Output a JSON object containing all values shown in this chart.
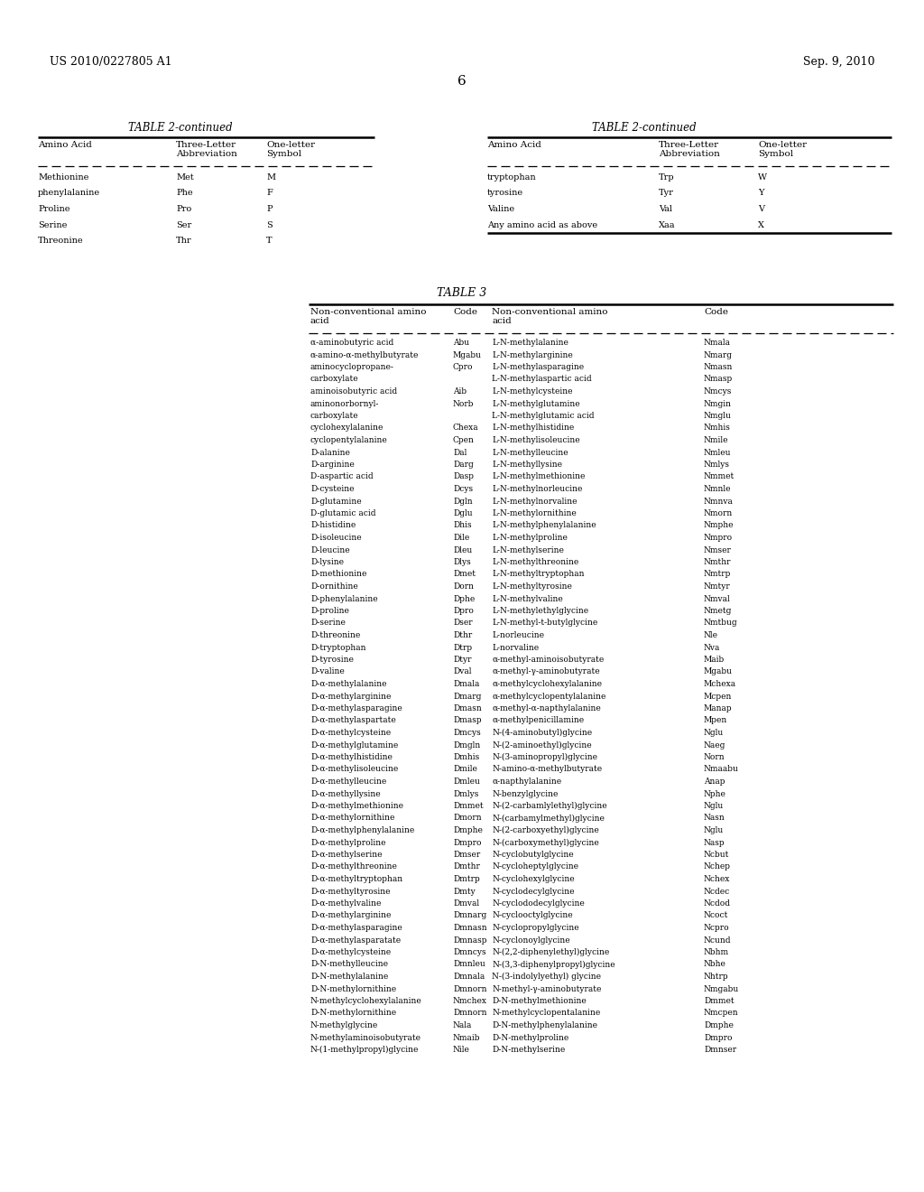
{
  "header_left": "US 2010/0227805 A1",
  "header_right": "Sep. 9, 2010",
  "page_number": "6",
  "table2_title": "TABLE 2-continued",
  "table2_left_rows": [
    [
      "Methionine",
      "Met",
      "M"
    ],
    [
      "phenylalanine",
      "Phe",
      "F"
    ],
    [
      "Proline",
      "Pro",
      "P"
    ],
    [
      "Serine",
      "Ser",
      "S"
    ],
    [
      "Threonine",
      "Thr",
      "T"
    ]
  ],
  "table2_right_rows": [
    [
      "tryptophan",
      "Trp",
      "W"
    ],
    [
      "tyrosine",
      "Tyr",
      "Y"
    ],
    [
      "Valine",
      "Val",
      "V"
    ],
    [
      "Any amino acid as above",
      "Xaa",
      "X"
    ]
  ],
  "table3_title": "TABLE 3",
  "table3_rows": [
    [
      "α-aminobutyric acid",
      "Abu",
      "L-N-methylalanine",
      "Nmala"
    ],
    [
      "α-amino-α-methylbutyrate",
      "Mgabu",
      "L-N-methylarginine",
      "Nmarg"
    ],
    [
      "aminocyclopropane-",
      "Cpro",
      "L-N-methylasparagine",
      "Nmasn"
    ],
    [
      "carboxylate",
      "",
      "L-N-methylaspartic acid",
      "Nmasp"
    ],
    [
      "aminoisobutyric acid",
      "Aib",
      "L-N-methylcysteine",
      "Nmcys"
    ],
    [
      "aminonorbornyl-",
      "Norb",
      "L-N-methylglutamine",
      "Nmgin"
    ],
    [
      "carboxylate",
      "",
      "L-N-methylglutamic acid",
      "Nmglu"
    ],
    [
      "cyclohexylalanine",
      "Chexa",
      "L-N-methylhistidine",
      "Nmhis"
    ],
    [
      "cyclopentylalanine",
      "Cpen",
      "L-N-methylisoleucine",
      "Nmile"
    ],
    [
      "D-alanine",
      "Dal",
      "L-N-methylleucine",
      "Nmleu"
    ],
    [
      "D-arginine",
      "Darg",
      "L-N-methyllysine",
      "Nmlys"
    ],
    [
      "D-aspartic acid",
      "Dasp",
      "L-N-methylmethionine",
      "Nmmet"
    ],
    [
      "D-cysteine",
      "Dcys",
      "L-N-methylnorleucine",
      "Nmnle"
    ],
    [
      "D-glutamine",
      "Dgln",
      "L-N-methylnorvaline",
      "Nmnva"
    ],
    [
      "D-glutamic acid",
      "Dglu",
      "L-N-methylornithine",
      "Nmorn"
    ],
    [
      "D-histidine",
      "Dhis",
      "L-N-methylphenylalanine",
      "Nmphe"
    ],
    [
      "D-isoleucine",
      "Dile",
      "L-N-methylproline",
      "Nmpro"
    ],
    [
      "D-leucine",
      "Dleu",
      "L-N-methylserine",
      "Nmser"
    ],
    [
      "D-lysine",
      "Dlys",
      "L-N-methylthreonine",
      "Nmthr"
    ],
    [
      "D-methionine",
      "Dmet",
      "L-N-methyltryptophan",
      "Nmtrp"
    ],
    [
      "D-ornithine",
      "Dorn",
      "L-N-methyltyrosine",
      "Nmtyr"
    ],
    [
      "D-phenylalanine",
      "Dphe",
      "L-N-methylvaline",
      "Nmval"
    ],
    [
      "D-proline",
      "Dpro",
      "L-N-methylethylglycine",
      "Nmetg"
    ],
    [
      "D-serine",
      "Dser",
      "L-N-methyl-t-butylglycine",
      "Nmtbug"
    ],
    [
      "D-threonine",
      "Dthr",
      "L-norleucine",
      "Nle"
    ],
    [
      "D-tryptophan",
      "Dtrp",
      "L-norvaline",
      "Nva"
    ],
    [
      "D-tyrosine",
      "Dtyr",
      "α-methyl-aminoisobutyrate",
      "Maib"
    ],
    [
      "D-valine",
      "Dval",
      "α-methyl-γ-aminobutyrate",
      "Mgabu"
    ],
    [
      "D-α-methylalanine",
      "Dmala",
      "α-methylcyclohexylalanine",
      "Mchexa"
    ],
    [
      "D-α-methylarginine",
      "Dmarg",
      "α-methylcyclopentylalanine",
      "Mcpen"
    ],
    [
      "D-α-methylasparagine",
      "Dmasn",
      "α-methyl-α-napthylalanine",
      "Manap"
    ],
    [
      "D-α-methylaspartate",
      "Dmasp",
      "α-methylpenicillamine",
      "Mpen"
    ],
    [
      "D-α-methylcysteine",
      "Dmcys",
      "N-(4-aminobutyl)glycine",
      "Nglu"
    ],
    [
      "D-α-methylglutamine",
      "Dmgln",
      "N-(2-aminoethyl)glycine",
      "Naeg"
    ],
    [
      "D-α-methylhistidine",
      "Dmhis",
      "N-(3-aminopropyl)glycine",
      "Norn"
    ],
    [
      "D-α-methylisoleucine",
      "Dmile",
      "N-amino-α-methylbutyrate",
      "Nmaabu"
    ],
    [
      "D-α-methylleucine",
      "Dmleu",
      "α-napthylalanine",
      "Anap"
    ],
    [
      "D-α-methyllysine",
      "Dmlys",
      "N-benzylglycine",
      "Nphe"
    ],
    [
      "D-α-methylmethionine",
      "Dmmet",
      "N-(2-carbamlylethyl)glycine",
      "Nglu"
    ],
    [
      "D-α-methylornithine",
      "Dmorn",
      "N-(carbamylmethyl)glycine",
      "Nasn"
    ],
    [
      "D-α-methylphenylalanine",
      "Dmphe",
      "N-(2-carboxyethyl)glycine",
      "Nglu"
    ],
    [
      "D-α-methylproline",
      "Dmpro",
      "N-(carboxymethyl)glycine",
      "Nasp"
    ],
    [
      "D-α-methylserine",
      "Dmser",
      "N-cyclobutylglycine",
      "Ncbut"
    ],
    [
      "D-α-methylthreonine",
      "Dmthr",
      "N-cycloheptylglycine",
      "Nchep"
    ],
    [
      "D-α-methyltryptophan",
      "Dmtrp",
      "N-cyclohexylglycine",
      "Nchex"
    ],
    [
      "D-α-methyltyrosine",
      "Dmty",
      "N-cyclodecylglycine",
      "Ncdec"
    ],
    [
      "D-α-methylvaline",
      "Dmval",
      "N-cyclododecylglycine",
      "Ncdod"
    ],
    [
      "D-α-methylarginine",
      "Dmnarg",
      "N-cyclooctylglycine",
      "Ncoct"
    ],
    [
      "D-α-methylasparagine",
      "Dmnasn",
      "N-cyclopropylglycine",
      "Ncpro"
    ],
    [
      "D-α-methylasparatate",
      "Dmnasp",
      "N-cyclonoylglycine",
      "Ncund"
    ],
    [
      "D-α-methylcysteine",
      "Dmncys",
      "N-(2,2-diphenylethyl)glycine",
      "Nbhm"
    ],
    [
      "D-N-methylleucine",
      "Dmnleu",
      "N-(3,3-diphenylpropyl)glycine",
      "Nbhe"
    ],
    [
      "D-N-methylalanine",
      "Dmnala",
      "N-(3-indolylyethyl) glycine",
      "Nhtrp"
    ],
    [
      "D-N-methylornithine",
      "Dmnorn",
      "N-methyl-γ-aminobutyrate",
      "Nmgabu"
    ],
    [
      "N-methylcyclohexylalanine",
      "Nmchex",
      "D-N-methylmethionine",
      "Dmmet"
    ],
    [
      "D-N-methylornithine",
      "Dmnorn",
      "N-methylcyclopentalanine",
      "Nmcpen"
    ],
    [
      "N-methylglycine",
      "Nala",
      "D-N-methylphenylalanine",
      "Dmphe"
    ],
    [
      "N-methylaminoisobutyrate",
      "Nmaib",
      "D-N-methylproline",
      "Dmpro"
    ],
    [
      "N-(1-methylpropyl)glycine",
      "Nile",
      "D-N-methylserine",
      "Dmnser"
    ]
  ]
}
